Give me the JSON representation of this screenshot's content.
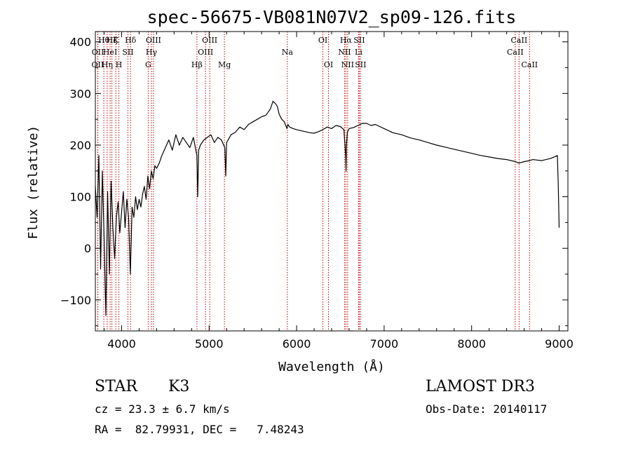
{
  "chart_data": {
    "type": "line",
    "title": "spec-56675-VB081N07V2_sp09-126.fits",
    "xlabel": "Wavelength (Å)",
    "ylabel": "Flux (relative)",
    "xlim": [
      3700,
      9100
    ],
    "ylim": [
      -160,
      420
    ],
    "x_ticks": [
      4000,
      5000,
      6000,
      7000,
      8000,
      9000
    ],
    "y_ticks": [
      -100,
      0,
      100,
      200,
      300,
      400
    ],
    "grid": false,
    "line_color": "#000000",
    "marker_color": "#c00000",
    "series": [
      {
        "name": "flux",
        "x": [
          3700,
          3720,
          3740,
          3760,
          3780,
          3800,
          3820,
          3840,
          3860,
          3880,
          3900,
          3920,
          3940,
          3960,
          3980,
          4000,
          4020,
          4040,
          4060,
          4080,
          4100,
          4120,
          4140,
          4160,
          4180,
          4200,
          4220,
          4240,
          4260,
          4280,
          4300,
          4320,
          4340,
          4360,
          4380,
          4400,
          4430,
          4460,
          4500,
          4540,
          4580,
          4620,
          4660,
          4700,
          4740,
          4780,
          4820,
          4860,
          4870,
          4880,
          4900,
          4940,
          4980,
          5020,
          5060,
          5100,
          5140,
          5180,
          5190,
          5200,
          5250,
          5300,
          5350,
          5400,
          5450,
          5500,
          5550,
          5600,
          5650,
          5700,
          5730,
          5760,
          5780,
          5800,
          5830,
          5860,
          5890,
          5900,
          5920,
          5960,
          6000,
          6050,
          6100,
          6150,
          6200,
          6250,
          6300,
          6350,
          6400,
          6450,
          6500,
          6540,
          6560,
          6565,
          6570,
          6580,
          6600,
          6650,
          6700,
          6750,
          6800,
          6850,
          6900,
          6950,
          7000,
          7100,
          7200,
          7300,
          7400,
          7500,
          7600,
          7700,
          7800,
          7900,
          8000,
          8100,
          8200,
          8300,
          8400,
          8500,
          8540,
          8600,
          8660,
          8700,
          8800,
          8900,
          8960,
          8980,
          8990,
          9000
        ],
        "values": [
          120,
          60,
          180,
          -40,
          150,
          20,
          -130,
          110,
          -50,
          130,
          40,
          -20,
          60,
          90,
          30,
          70,
          110,
          40,
          95,
          60,
          -50,
          80,
          60,
          100,
          75,
          95,
          80,
          105,
          120,
          95,
          140,
          115,
          150,
          135,
          160,
          155,
          165,
          180,
          195,
          210,
          190,
          220,
          200,
          215,
          205,
          195,
          215,
          180,
          100,
          190,
          200,
          210,
          215,
          220,
          205,
          215,
          210,
          195,
          140,
          205,
          220,
          225,
          235,
          230,
          240,
          245,
          250,
          255,
          258,
          270,
          285,
          280,
          275,
          260,
          250,
          245,
          232,
          240,
          235,
          232,
          230,
          228,
          226,
          224,
          223,
          226,
          230,
          235,
          232,
          238,
          236,
          230,
          180,
          150,
          200,
          225,
          232,
          234,
          238,
          242,
          242,
          238,
          240,
          236,
          232,
          224,
          220,
          214,
          210,
          205,
          200,
          196,
          192,
          188,
          184,
          180,
          177,
          174,
          172,
          168,
          165,
          168,
          170,
          172,
          170,
          174,
          178,
          180,
          120,
          40
        ]
      }
    ],
    "line_markers": [
      {
        "x": 3797,
        "label": "Hθ",
        "row": 0
      },
      {
        "x": 3835,
        "label": "Hη",
        "row": 2
      },
      {
        "x": 3869,
        "label": "HeI",
        "row": 1
      },
      {
        "x": 3889,
        "label": "Hζ",
        "row": 0
      },
      {
        "x": 3934,
        "label": "K",
        "row": 0
      },
      {
        "x": 3969,
        "label": "H",
        "row": 2
      },
      {
        "x": 4072,
        "label": "SII",
        "row": 1
      },
      {
        "x": 4102,
        "label": "Hδ",
        "row": 0
      },
      {
        "x": 4304,
        "label": "G",
        "row": 2
      },
      {
        "x": 4341,
        "label": "Hγ",
        "row": 1
      },
      {
        "x": 4364,
        "label": "OIII",
        "row": 0
      },
      {
        "x": 4861,
        "label": "Hβ",
        "row": 2
      },
      {
        "x": 4959,
        "label": "OIII",
        "row": 1
      },
      {
        "x": 5007,
        "label": "OIII",
        "row": 0
      },
      {
        "x": 5175,
        "label": "Mg",
        "row": 2
      },
      {
        "x": 5894,
        "label": "Na",
        "row": 1
      },
      {
        "x": 6300,
        "label": "OI",
        "row": 0
      },
      {
        "x": 6364,
        "label": "OI",
        "row": 2
      },
      {
        "x": 6548,
        "label": "NII",
        "row": 1
      },
      {
        "x": 6563,
        "label": "Hα",
        "row": 0
      },
      {
        "x": 6583,
        "label": "NII",
        "row": 2
      },
      {
        "x": 6708,
        "label": "Li",
        "row": 1
      },
      {
        "x": 6716,
        "label": "SII",
        "row": 0
      },
      {
        "x": 6731,
        "label": "SII",
        "row": 2
      },
      {
        "x": 8498,
        "label": "CaII",
        "row": 1
      },
      {
        "x": 8542,
        "label": "CaII",
        "row": 0
      },
      {
        "x": 8662,
        "label": "CaII",
        "row": 2
      },
      {
        "x": 3727,
        "label": "OII",
        "row": 2
      },
      {
        "x": 3729,
        "label": "OII",
        "row": 1
      }
    ]
  },
  "info": {
    "object_class": "STAR",
    "subclass": "K3",
    "survey": "LAMOST DR3",
    "redshift": "cz = 23.3 ± 6.7 km/s",
    "obs_date": "Obs-Date: 20140117",
    "coords": "RA =  82.79931, DEC =   7.48243"
  }
}
